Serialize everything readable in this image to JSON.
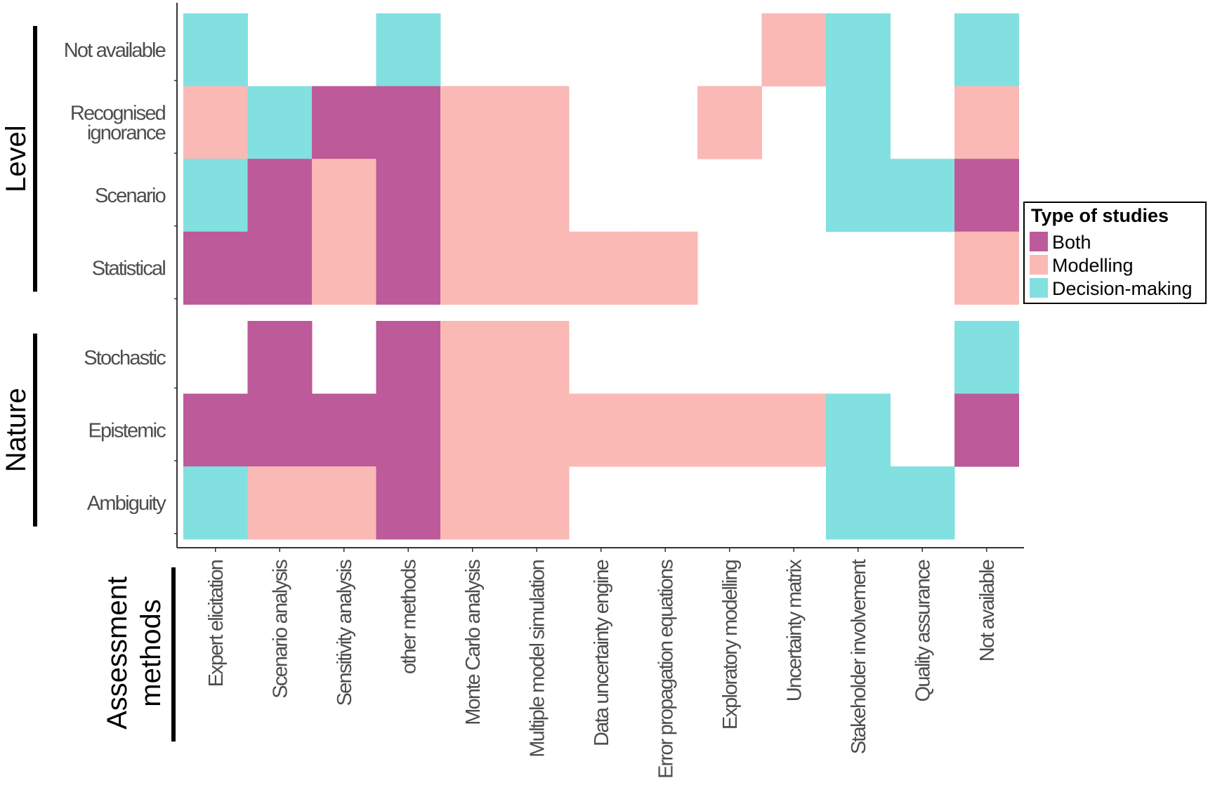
{
  "chart_data": {
    "type": "heatmap",
    "legend": {
      "title": "Type of studies",
      "placement": "right",
      "entries": [
        {
          "key": "B",
          "label": "Both",
          "color": "#bd5a99"
        },
        {
          "key": "M",
          "label": "Modelling",
          "color": "#fab9b5"
        },
        {
          "key": "D",
          "label": "Decision-making",
          "color": "#82e0e1"
        }
      ]
    },
    "x_title_lines": [
      "Assessment",
      "methods"
    ],
    "x_categories": [
      "Expert elicitation",
      "Scenario analysis",
      "Sensitivity analysis",
      "other methods",
      "Monte Carlo analysis",
      "Multiple model simulation",
      "Data uncertainty engine",
      "Error propagation equations",
      "Exploratory modelling",
      "Uncertainty matrix",
      "Stakeholder involvement",
      "Quality assurance",
      "Not available"
    ],
    "facets": [
      {
        "title": "Level",
        "rows": [
          {
            "label_lines": [
              "Not available"
            ],
            "cells": [
              "D",
              "",
              "",
              "D",
              "",
              "",
              "",
              "",
              "",
              "M",
              "D",
              "",
              "D"
            ]
          },
          {
            "label_lines": [
              "Recognised",
              "ignorance"
            ],
            "cells": [
              "M",
              "D",
              "B",
              "B",
              "M",
              "M",
              "",
              "",
              "M",
              "",
              "D",
              "",
              "M"
            ]
          },
          {
            "label_lines": [
              "Scenario"
            ],
            "cells": [
              "D",
              "B",
              "M",
              "B",
              "M",
              "M",
              "",
              "",
              "",
              "",
              "D",
              "D",
              "B"
            ]
          },
          {
            "label_lines": [
              "Statistical"
            ],
            "cells": [
              "B",
              "B",
              "M",
              "B",
              "M",
              "M",
              "M",
              "M",
              "",
              "",
              "",
              "",
              "M"
            ]
          }
        ]
      },
      {
        "title": "Nature",
        "rows": [
          {
            "label_lines": [
              "Stochastic"
            ],
            "cells": [
              "",
              "B",
              "",
              "B",
              "M",
              "M",
              "",
              "",
              "",
              "",
              "",
              "",
              "D"
            ]
          },
          {
            "label_lines": [
              "Epistemic"
            ],
            "cells": [
              "B",
              "B",
              "B",
              "B",
              "M",
              "M",
              "M",
              "M",
              "M",
              "M",
              "D",
              "",
              "B"
            ]
          },
          {
            "label_lines": [
              "Ambiguity"
            ],
            "cells": [
              "D",
              "M",
              "M",
              "B",
              "M",
              "M",
              "",
              "",
              "",
              "",
              "D",
              "D",
              ""
            ]
          }
        ]
      }
    ]
  }
}
